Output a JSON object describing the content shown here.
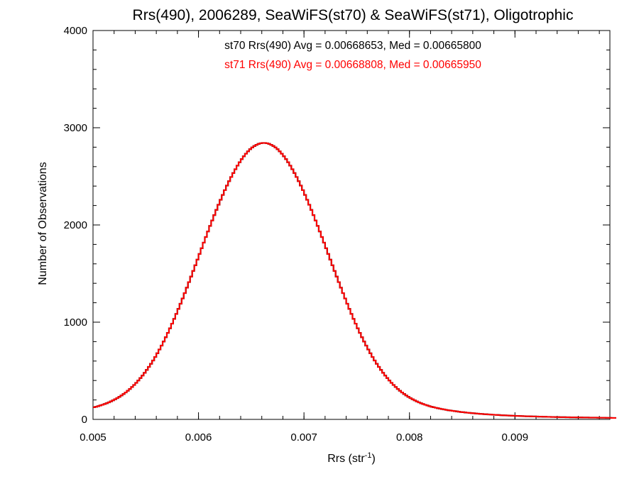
{
  "chart_data": {
    "type": "step-histogram",
    "title": "Rrs(490), 2006289, SeaWiFS(st70) & SeaWiFS(st71), Oligotrophic",
    "xlabel_main": "Rrs (str",
    "xlabel_sup": "-1",
    "xlabel_close": ")",
    "ylabel": "Number of Observations",
    "xlim": [
      0.005,
      0.0099
    ],
    "ylim": [
      0,
      4000
    ],
    "x_ticks": [
      0.005,
      0.006,
      0.007,
      0.008,
      0.009
    ],
    "x_tick_labels": [
      "0.005",
      "0.006",
      "0.007",
      "0.008",
      "0.009"
    ],
    "y_ticks": [
      0,
      1000,
      2000,
      3000,
      4000
    ],
    "y_tick_labels": [
      "0",
      "1000",
      "2000",
      "3000",
      "4000"
    ],
    "grid": false,
    "x_start": 0.005,
    "bin_width": 2e-05,
    "series": [
      {
        "name": "st70",
        "color": "#000000",
        "annotation": "st70 Rrs(490) Avg = 0.00668653, Med = 0.00665800",
        "values": [
          125,
          130,
          136,
          143,
          150,
          158,
          166,
          175,
          185,
          196,
          207,
          219,
          232,
          246,
          261,
          277,
          295,
          313,
          333,
          354,
          376,
          400,
          425,
          451,
          479,
          509,
          540,
          572,
          606,
          642,
          680,
          719,
          759,
          801,
          845,
          890,
          937,
          985,
          1034,
          1085,
          1137,
          1190,
          1244,
          1299,
          1355,
          1412,
          1469,
          1527,
          1585,
          1643,
          1702,
          1760,
          1818,
          1876,
          1933,
          1990,
          2046,
          2101,
          2155,
          2208,
          2259,
          2309,
          2358,
          2405,
          2450,
          2493,
          2534,
          2573,
          2610,
          2645,
          2677,
          2706,
          2733,
          2757,
          2779,
          2797,
          2812,
          2824,
          2834,
          2840,
          2843,
          2843,
          2840,
          2834,
          2824,
          2812,
          2797,
          2779,
          2757,
          2733,
          2706,
          2677,
          2645,
          2610,
          2573,
          2534,
          2493,
          2450,
          2405,
          2358,
          2309,
          2259,
          2208,
          2155,
          2101,
          2046,
          1990,
          1933,
          1876,
          1818,
          1760,
          1702,
          1643,
          1585,
          1527,
          1469,
          1412,
          1355,
          1299,
          1244,
          1190,
          1137,
          1085,
          1034,
          985,
          937,
          890,
          845,
          801,
          759,
          719,
          680,
          642,
          606,
          572,
          540,
          509,
          479,
          451,
          425,
          400,
          376,
          354,
          333,
          313,
          295,
          277,
          261,
          246,
          232,
          219,
          207,
          196,
          185,
          175,
          166,
          158,
          150,
          143,
          136,
          130,
          125,
          120,
          115,
          110,
          106,
          102,
          98,
          94,
          91,
          88,
          85,
          82,
          79,
          76,
          74,
          71,
          69,
          67,
          65,
          63,
          61,
          59,
          57,
          56,
          54,
          53,
          51,
          50,
          48,
          47,
          46,
          45,
          43,
          42,
          41,
          40,
          39,
          38,
          37,
          36,
          36,
          35,
          34,
          33,
          32,
          32,
          31,
          30,
          30,
          29,
          28,
          28,
          27,
          27,
          26,
          26,
          25,
          25,
          24,
          24,
          23,
          23,
          23,
          22,
          22,
          21,
          21,
          21,
          20,
          20,
          20,
          19,
          19,
          19,
          18,
          18,
          18,
          18,
          17,
          17,
          17,
          17,
          16,
          16,
          16,
          16,
          15,
          15
        ]
      },
      {
        "name": "st71",
        "color": "#ff0000",
        "annotation": "st71 Rrs(490) Avg = 0.00668808, Med = 0.00665950",
        "values": []
      }
    ]
  }
}
